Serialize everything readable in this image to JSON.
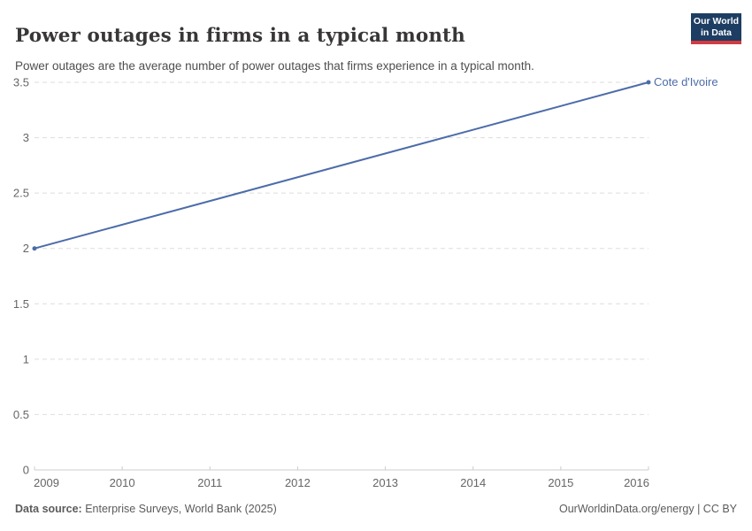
{
  "header": {
    "title": "Power outages in firms in a typical month",
    "subtitle": "Power outages are the average number of power outages that firms experience in a typical month.",
    "logo": {
      "line1": "Our World",
      "line2": "in Data"
    }
  },
  "chart_data": {
    "type": "line",
    "title": "Power outages in firms in a typical month",
    "xlabel": "",
    "ylabel": "",
    "series": [
      {
        "name": "Cote d'Ivoire",
        "color": "#4C6CA9",
        "x": [
          2009,
          2016
        ],
        "values": [
          2,
          3.5
        ]
      }
    ],
    "x_ticks": [
      2009,
      2010,
      2011,
      2012,
      2013,
      2014,
      2015,
      2016
    ],
    "y_ticks": [
      0,
      0.5,
      1,
      1.5,
      2,
      2.5,
      3,
      3.5
    ],
    "xlim": [
      2009,
      2016
    ],
    "ylim": [
      0,
      3.5
    ],
    "grid": "horizontal-dashed",
    "legend_position": "end-of-line-label",
    "end_markers": true
  },
  "footer": {
    "datasource_label": "Data source:",
    "datasource_value": " Enterprise Surveys, World Bank (2025)",
    "right_text": "OurWorldinData.org/energy | CC BY"
  },
  "colors": {
    "line_blue": "#4C6CA9",
    "logo_navy": "#1d3d63",
    "logo_red": "#d13b41",
    "gridline": "#dddddd",
    "axis": "#cccccc",
    "tick_label": "#666666",
    "title_text": "#383636",
    "subtitle_text": "#4e4e4e",
    "footer_text": "#5b5b5b"
  }
}
